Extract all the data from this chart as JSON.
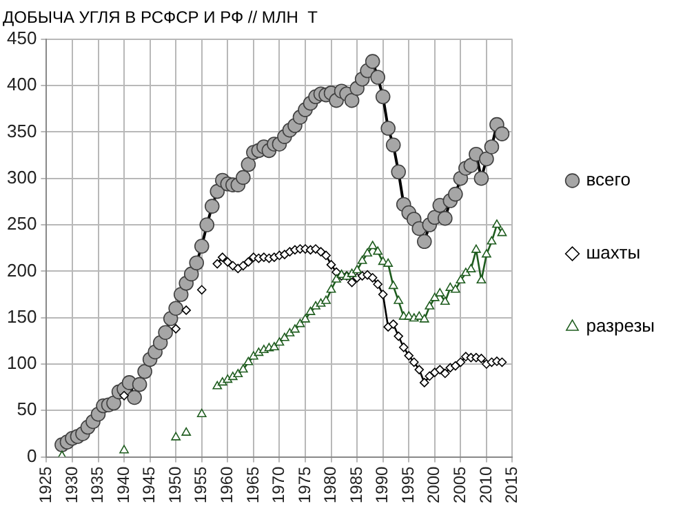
{
  "chart_data": {
    "type": "line",
    "title": "ДОБЫЧА УГЛЯ В РСФСР И РФ // МЛН  Т",
    "x": [
      1928,
      1929,
      1930,
      1931,
      1932,
      1933,
      1934,
      1935,
      1936,
      1937,
      1938,
      1939,
      1940,
      1941,
      1942,
      1943,
      1944,
      1945,
      1946,
      1947,
      1948,
      1949,
      1950,
      1951,
      1952,
      1953,
      1954,
      1955,
      1956,
      1957,
      1958,
      1959,
      1960,
      1961,
      1962,
      1963,
      1964,
      1965,
      1966,
      1967,
      1968,
      1969,
      1970,
      1971,
      1972,
      1973,
      1974,
      1975,
      1976,
      1977,
      1978,
      1979,
      1980,
      1981,
      1982,
      1983,
      1984,
      1985,
      1986,
      1987,
      1988,
      1989,
      1990,
      1991,
      1992,
      1993,
      1994,
      1995,
      1996,
      1997,
      1998,
      1999,
      2000,
      2001,
      2002,
      2003,
      2004,
      2005,
      2006,
      2007,
      2008,
      2009,
      2010,
      2011,
      2012,
      2013
    ],
    "series": [
      {
        "name": "всего",
        "color": "#a6a6a6",
        "marker": "circle",
        "values": [
          13,
          16,
          20,
          22,
          25,
          32,
          38,
          46,
          55,
          56,
          58,
          70,
          73,
          80,
          64,
          78,
          92,
          105,
          113,
          123,
          134,
          149,
          160,
          175,
          187,
          197,
          209,
          227,
          250,
          270,
          286,
          298,
          294,
          293,
          293,
          301,
          315,
          328,
          330,
          334,
          330,
          337,
          337,
          345,
          352,
          357,
          366,
          374,
          381,
          388,
          391,
          390,
          392,
          384,
          394,
          391,
          384,
          397,
          407,
          416,
          426,
          409,
          388,
          354,
          336,
          307,
          272,
          263,
          256,
          246,
          232,
          250,
          258,
          271,
          257,
          276,
          283,
          300,
          311,
          314,
          326,
          300,
          321,
          334,
          358,
          348
        ]
      },
      {
        "name": "шахты",
        "color": "#000000",
        "marker": "diamond",
        "values": [
          null,
          null,
          null,
          null,
          null,
          null,
          null,
          null,
          null,
          null,
          null,
          null,
          66,
          null,
          null,
          null,
          null,
          null,
          null,
          null,
          null,
          null,
          138,
          null,
          158,
          null,
          null,
          180,
          null,
          null,
          208,
          215,
          210,
          206,
          203,
          206,
          210,
          215,
          214,
          215,
          214,
          215,
          217,
          218,
          221,
          223,
          224,
          224,
          223,
          224,
          221,
          217,
          207,
          199,
          195,
          195,
          188,
          193,
          195,
          196,
          193,
          186,
          175,
          140,
          143,
          130,
          118,
          109,
          102,
          94,
          80,
          87,
          91,
          94,
          90,
          96,
          98,
          102,
          108,
          107,
          107,
          106,
          100,
          102,
          103,
          102
        ]
      },
      {
        "name": "разрезы",
        "color": "#1e5c1e",
        "marker": "triangle",
        "values": [
          1,
          null,
          null,
          null,
          null,
          null,
          null,
          null,
          null,
          null,
          null,
          null,
          7,
          null,
          null,
          null,
          null,
          null,
          null,
          null,
          null,
          null,
          21,
          null,
          26,
          null,
          null,
          46,
          null,
          null,
          76,
          80,
          83,
          86,
          89,
          94,
          102,
          108,
          112,
          115,
          117,
          118,
          123,
          128,
          133,
          137,
          143,
          148,
          156,
          162,
          165,
          168,
          180,
          191,
          196,
          194,
          197,
          201,
          211,
          219,
          227,
          221,
          210,
          208,
          184,
          168,
          151,
          151,
          149,
          151,
          148,
          162,
          171,
          176,
          167,
          182,
          180,
          190,
          198,
          202,
          223,
          190,
          218,
          232,
          250,
          241
        ]
      }
    ],
    "xlim": [
      1925,
      2015
    ],
    "xticks": [
      1925,
      1930,
      1935,
      1940,
      1945,
      1950,
      1955,
      1960,
      1965,
      1970,
      1975,
      1980,
      1985,
      1990,
      1995,
      2000,
      2005,
      2010,
      2015
    ],
    "ylim": [
      0,
      450
    ],
    "yticks": [
      0,
      50,
      100,
      150,
      200,
      250,
      300,
      350,
      400,
      450
    ],
    "grid": true,
    "legend": "right"
  }
}
